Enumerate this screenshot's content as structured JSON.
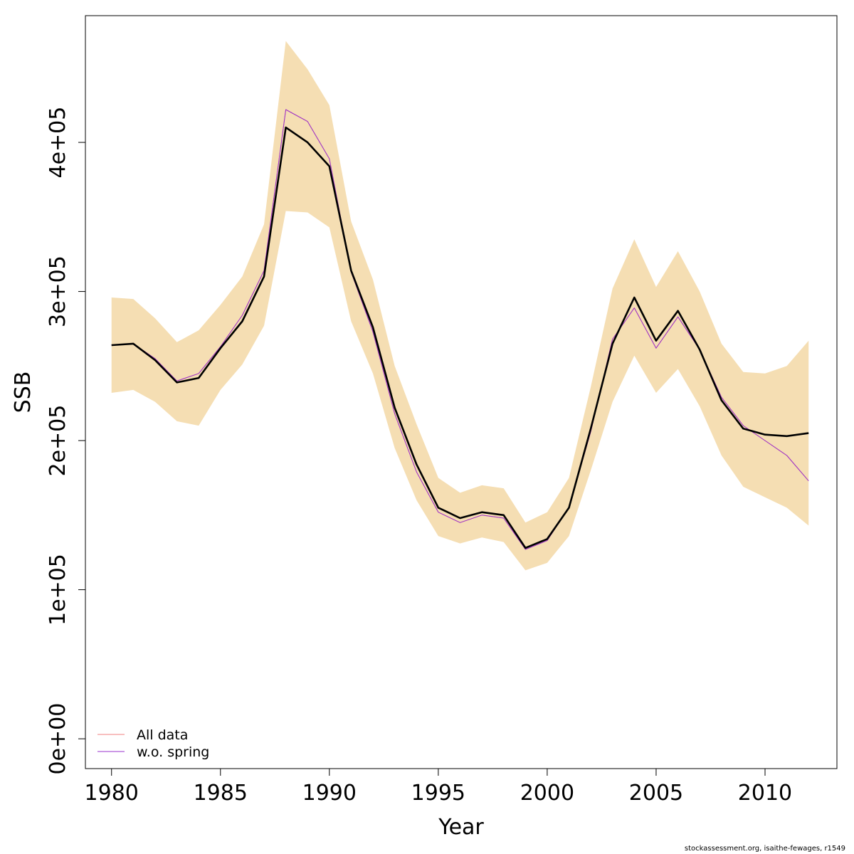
{
  "chart_data": {
    "type": "line",
    "xlabel": "Year",
    "ylabel": "SSB",
    "xlim": [
      1978.8,
      2013.3
    ],
    "ylim": [
      -20000,
      485000
    ],
    "x_ticks": [
      1980,
      1985,
      1990,
      1995,
      2000,
      2005,
      2010
    ],
    "x_tick_labels": [
      "1980",
      "1985",
      "1990",
      "1995",
      "2000",
      "2005",
      "2010"
    ],
    "y_ticks": [
      0,
      100000,
      200000,
      300000,
      400000
    ],
    "y_tick_labels": [
      "0e+00",
      "1e+05",
      "2e+05",
      "3e+05",
      "4e+05"
    ],
    "x": [
      1980,
      1981,
      1982,
      1983,
      1984,
      1985,
      1986,
      1987,
      1988,
      1989,
      1990,
      1991,
      1992,
      1993,
      1994,
      1995,
      1996,
      1997,
      1998,
      1999,
      2000,
      2001,
      2002,
      2003,
      2004,
      2005,
      2006,
      2007,
      2008,
      2009,
      2010,
      2011,
      2012
    ],
    "band": {
      "color": "#f5deb3",
      "lower": [
        232000,
        234000,
        226000,
        213000,
        210000,
        234000,
        251000,
        277000,
        354000,
        353000,
        343000,
        280000,
        245000,
        195000,
        160000,
        136000,
        131000,
        135000,
        132000,
        113000,
        118000,
        136000,
        180000,
        226000,
        257000,
        232000,
        248000,
        223000,
        190000,
        169000,
        162000,
        155000,
        143000
      ],
      "upper": [
        296000,
        295000,
        282000,
        266000,
        274000,
        291000,
        310000,
        345000,
        468000,
        449000,
        425000,
        347000,
        308000,
        250000,
        211000,
        175000,
        165000,
        170000,
        168000,
        145000,
        152000,
        175000,
        236000,
        302000,
        335000,
        303000,
        327000,
        300000,
        265000,
        246000,
        245000,
        250000,
        267000
      ]
    },
    "series": [
      {
        "name": "All data",
        "color": "#f08080",
        "values": [
          264000,
          265000,
          255000,
          240000,
          245000,
          263000,
          284000,
          314000,
          422000,
          414000,
          389000,
          313000,
          273000,
          218000,
          179000,
          152000,
          145000,
          150000,
          148000,
          127000,
          133000,
          155000,
          206000,
          268000,
          289000,
          262000,
          283000,
          261000,
          229000,
          210000,
          200000,
          190000,
          173000
        ]
      },
      {
        "name": "w.o. spring",
        "color": "#9932cc",
        "values": [
          264000,
          265000,
          255000,
          240000,
          245000,
          263000,
          284000,
          314000,
          422000,
          414000,
          389000,
          313000,
          273000,
          218000,
          179000,
          152000,
          145000,
          150000,
          148000,
          127000,
          133000,
          155000,
          206000,
          268000,
          289000,
          262000,
          283000,
          261000,
          229000,
          210000,
          200000,
          190000,
          173000
        ]
      },
      {
        "name": "",
        "color": "#000000",
        "values": [
          264000,
          265000,
          254000,
          239000,
          242000,
          262000,
          280000,
          310000,
          410000,
          400000,
          384000,
          314000,
          276000,
          222000,
          184000,
          155000,
          148000,
          152000,
          150000,
          128000,
          134000,
          155000,
          208000,
          265000,
          296000,
          267000,
          287000,
          261000,
          227000,
          208000,
          204000,
          203000,
          205000
        ]
      }
    ],
    "legend": {
      "position": "bottom-left",
      "items": [
        {
          "label": "All data",
          "color": "#f08080"
        },
        {
          "label": "w.o. spring",
          "color": "#9932cc"
        }
      ]
    }
  },
  "footer": "stockassessment.org, isaithe-fewages, r1549"
}
